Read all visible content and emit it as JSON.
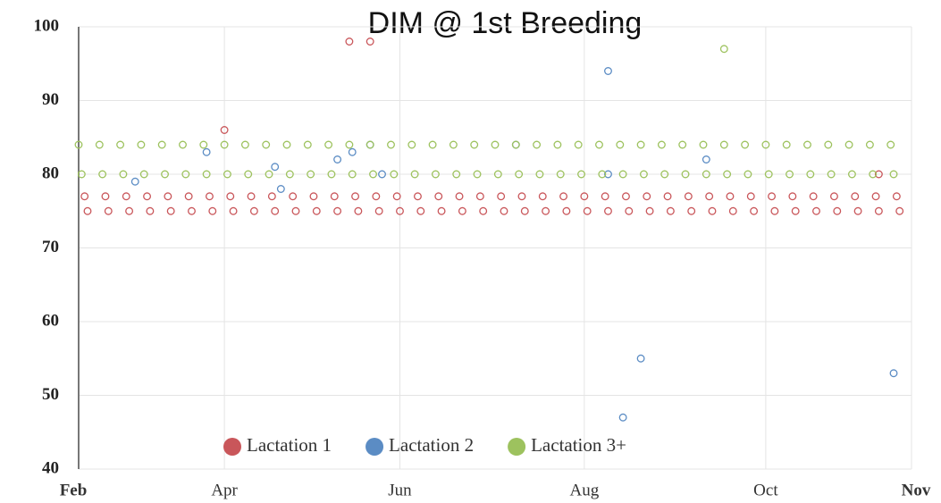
{
  "chart_data": {
    "type": "scatter",
    "title": "DIM @ 1st Breeding",
    "xlim": [
      0,
      280
    ],
    "xticks": [
      {
        "value": 0,
        "label": "Feb"
      },
      {
        "value": 49,
        "label": "Apr"
      },
      {
        "value": 108,
        "label": "Jun"
      },
      {
        "value": 170,
        "label": "Aug"
      },
      {
        "value": 231,
        "label": "Oct"
      },
      {
        "value": 280,
        "label": "Nov"
      }
    ],
    "ylim": [
      40,
      100
    ],
    "yticks": [
      40,
      50,
      60,
      70,
      80,
      90,
      100
    ],
    "grid": true,
    "series": [
      {
        "name": "Lactation 1",
        "color": "#c9565a",
        "x": [
          2,
          3,
          9,
          10,
          16,
          17,
          23,
          24,
          30,
          31,
          37,
          38,
          44,
          45,
          51,
          52,
          58,
          59,
          65,
          66,
          72,
          73,
          79,
          80,
          86,
          87,
          93,
          94,
          100,
          101,
          107,
          108,
          114,
          115,
          121,
          122,
          128,
          129,
          135,
          136,
          142,
          143,
          149,
          150,
          156,
          157,
          163,
          164,
          170,
          171,
          177,
          178,
          184,
          185,
          191,
          192,
          198,
          199,
          205,
          206,
          212,
          213,
          219,
          220,
          226,
          227,
          233,
          234,
          240,
          241,
          247,
          248,
          254,
          255,
          261,
          262,
          268,
          269,
          275,
          276,
          91,
          98,
          49,
          269
        ],
        "values": [
          77,
          75,
          77,
          75,
          77,
          75,
          77,
          75,
          77,
          75,
          77,
          75,
          77,
          75,
          77,
          75,
          77,
          75,
          77,
          75,
          77,
          75,
          77,
          75,
          77,
          75,
          77,
          75,
          77,
          75,
          77,
          75,
          77,
          75,
          77,
          75,
          77,
          75,
          77,
          75,
          77,
          75,
          77,
          75,
          77,
          75,
          77,
          75,
          77,
          75,
          77,
          75,
          77,
          75,
          77,
          75,
          77,
          75,
          77,
          75,
          77,
          75,
          77,
          75,
          77,
          75,
          77,
          75,
          77,
          75,
          77,
          75,
          77,
          75,
          77,
          75,
          77,
          75,
          77,
          75,
          98,
          98,
          86,
          80
        ]
      },
      {
        "name": "Lactation 2",
        "color": "#5b8cc4",
        "x": [
          178,
          178,
          189,
          183,
          274,
          147,
          98,
          92,
          87,
          66,
          43,
          19,
          68,
          102,
          211
        ],
        "values": [
          94,
          80,
          55,
          47,
          53,
          84,
          84,
          83,
          82,
          81,
          83,
          79,
          78,
          80,
          82
        ]
      },
      {
        "name": "Lactation 3+",
        "color": "#9dc25e",
        "x": [
          0,
          1,
          7,
          8,
          14,
          15,
          21,
          22,
          28,
          29,
          35,
          36,
          42,
          43,
          49,
          50,
          56,
          57,
          63,
          64,
          70,
          71,
          77,
          78,
          84,
          85,
          91,
          92,
          98,
          99,
          105,
          106,
          112,
          113,
          119,
          120,
          126,
          127,
          133,
          134,
          140,
          141,
          147,
          148,
          154,
          155,
          161,
          162,
          168,
          169,
          175,
          176,
          182,
          183,
          189,
          190,
          196,
          197,
          203,
          204,
          210,
          211,
          217,
          218,
          224,
          225,
          231,
          232,
          238,
          239,
          245,
          246,
          252,
          253,
          259,
          260,
          266,
          267,
          273,
          274,
          217
        ],
        "values": [
          84,
          80,
          84,
          80,
          84,
          80,
          84,
          80,
          84,
          80,
          84,
          80,
          84,
          80,
          84,
          80,
          84,
          80,
          84,
          80,
          84,
          80,
          84,
          80,
          84,
          80,
          84,
          80,
          84,
          80,
          84,
          80,
          84,
          80,
          84,
          80,
          84,
          80,
          84,
          80,
          84,
          80,
          84,
          80,
          84,
          80,
          84,
          80,
          84,
          80,
          84,
          80,
          84,
          80,
          84,
          80,
          84,
          80,
          84,
          80,
          84,
          80,
          84,
          80,
          84,
          80,
          84,
          80,
          84,
          80,
          84,
          80,
          84,
          80,
          84,
          80,
          84,
          80,
          84,
          80,
          97
        ]
      }
    ]
  }
}
